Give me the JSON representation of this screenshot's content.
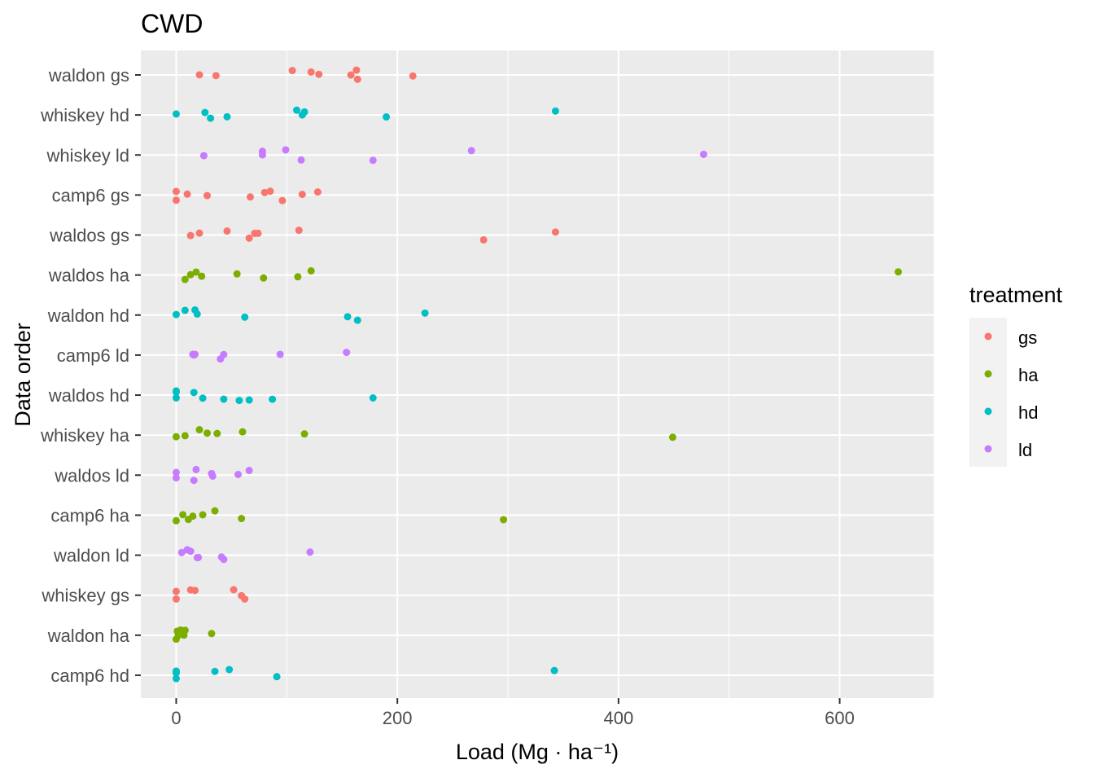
{
  "chart_data": {
    "type": "scatter",
    "title": "CWD",
    "xlabel": "Load (Mg · ha⁻¹)",
    "ylabel": "Data order",
    "xlim": [
      -32,
      685
    ],
    "xticks": [
      0,
      200,
      400,
      600
    ],
    "grid": true,
    "legend": {
      "title": "treatment",
      "placement": "right",
      "entries": [
        "gs",
        "ha",
        "hd",
        "ld"
      ]
    },
    "colors": {
      "gs": "#F8766D",
      "ha": "#7CAE00",
      "hd": "#00BFC4",
      "ld": "#C77CFF"
    },
    "categories": [
      "waldon gs",
      "whiskey hd",
      "whiskey ld",
      "camp6 gs",
      "waldos gs",
      "waldos ha",
      "waldon hd",
      "camp6 ld",
      "waldos hd",
      "whiskey ha",
      "waldos ld",
      "camp6 ha",
      "waldon ld",
      "whiskey gs",
      "waldon ha",
      "camp6 hd"
    ],
    "series": [
      {
        "category": "waldon gs",
        "treatment": "gs",
        "values": [
          21,
          36,
          105,
          122,
          129,
          158,
          163,
          164,
          214
        ]
      },
      {
        "category": "whiskey hd",
        "treatment": "hd",
        "values": [
          0,
          26,
          31,
          46,
          109,
          114,
          116,
          190,
          343
        ]
      },
      {
        "category": "whiskey ld",
        "treatment": "ld",
        "values": [
          25,
          78,
          78,
          99,
          113,
          178,
          267,
          477
        ]
      },
      {
        "category": "camp6 gs",
        "treatment": "gs",
        "values": [
          0,
          0,
          10,
          28,
          67,
          80,
          85,
          96,
          114,
          128
        ]
      },
      {
        "category": "waldos gs",
        "treatment": "gs",
        "values": [
          13,
          21,
          46,
          66,
          71,
          74,
          111,
          278,
          343
        ]
      },
      {
        "category": "waldos ha",
        "treatment": "ha",
        "values": [
          8,
          13,
          18,
          23,
          55,
          79,
          110,
          122,
          653
        ]
      },
      {
        "category": "waldon hd",
        "treatment": "hd",
        "values": [
          0,
          8,
          17,
          19,
          62,
          155,
          164,
          225
        ]
      },
      {
        "category": "camp6 ld",
        "treatment": "ld",
        "values": [
          15,
          16,
          17,
          40,
          43,
          94,
          154
        ]
      },
      {
        "category": "waldos hd",
        "treatment": "hd",
        "values": [
          0,
          0,
          0,
          16,
          24,
          43,
          57,
          66,
          87,
          178
        ]
      },
      {
        "category": "whiskey ha",
        "treatment": "ha",
        "values": [
          0,
          8,
          21,
          28,
          37,
          60,
          116,
          449
        ]
      },
      {
        "category": "waldos ld",
        "treatment": "ld",
        "values": [
          0,
          0,
          16,
          18,
          32,
          33,
          56,
          66
        ]
      },
      {
        "category": "camp6 ha",
        "treatment": "ha",
        "values": [
          0,
          6,
          11,
          15,
          24,
          35,
          59,
          296
        ]
      },
      {
        "category": "waldon ld",
        "treatment": "ld",
        "values": [
          5,
          10,
          13,
          19,
          20,
          41,
          43,
          121
        ]
      },
      {
        "category": "whiskey gs",
        "treatment": "gs",
        "values": [
          0,
          0,
          13,
          17,
          52,
          59,
          62
        ]
      },
      {
        "category": "waldon ha",
        "treatment": "ha",
        "values": [
          0,
          1,
          2,
          4,
          6,
          7,
          8,
          32
        ]
      },
      {
        "category": "camp6 hd",
        "treatment": "hd",
        "values": [
          0,
          0,
          0,
          0,
          35,
          48,
          91,
          342
        ]
      }
    ]
  }
}
